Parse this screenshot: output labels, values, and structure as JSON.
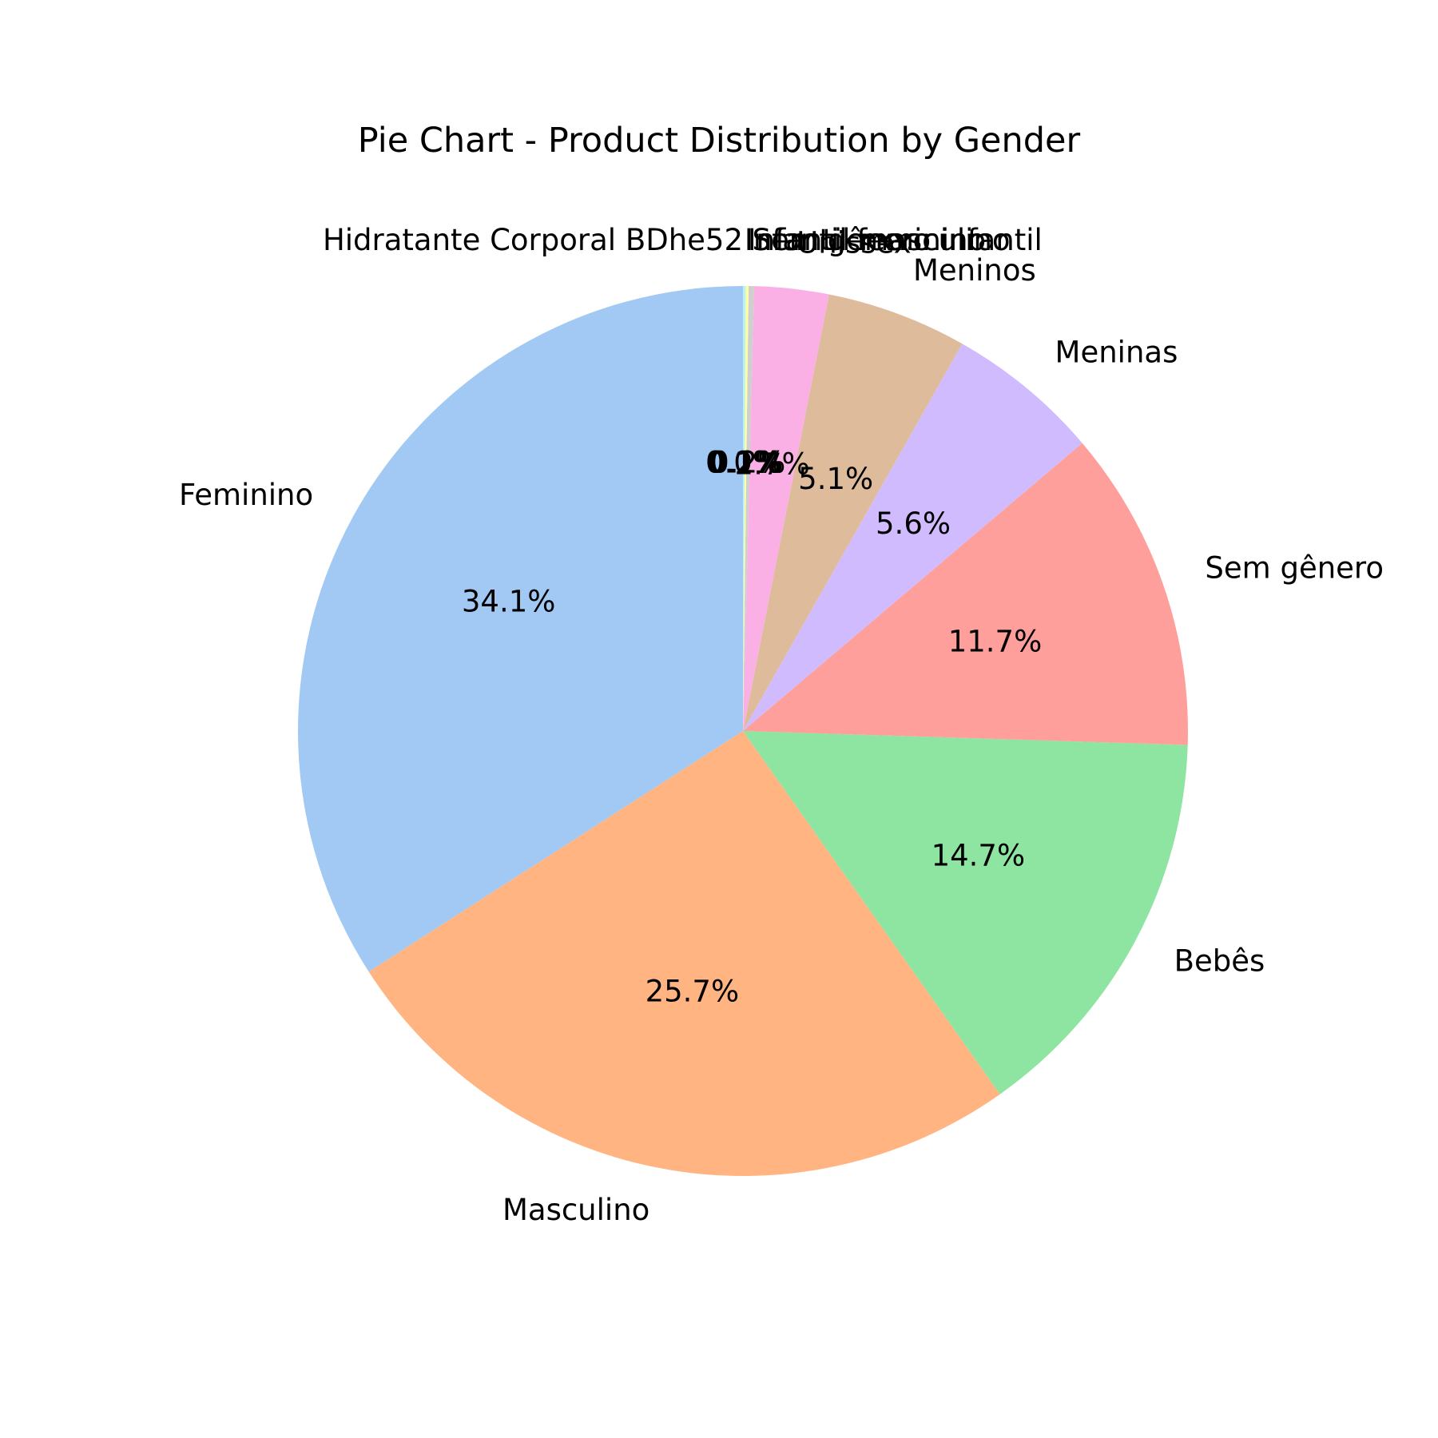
{
  "chart_data": {
    "type": "pie",
    "title": "Pie Chart - Product Distribution by Gender",
    "slices": [
      {
        "label": "Feminino",
        "value": 34.1,
        "pct_label": "34.1%",
        "color": "#a1c9f4"
      },
      {
        "label": "Masculino",
        "value": 25.7,
        "pct_label": "25.7%",
        "color": "#ffb482"
      },
      {
        "label": "Bebês",
        "value": 14.7,
        "pct_label": "14.7%",
        "color": "#8de5a1"
      },
      {
        "label": "Sem gênero",
        "value": 11.7,
        "pct_label": "11.7%",
        "color": "#ff9f9b"
      },
      {
        "label": "Meninas",
        "value": 5.6,
        "pct_label": "5.6%",
        "color": "#d0bbff"
      },
      {
        "label": "Meninos",
        "value": 5.1,
        "pct_label": "5.1%",
        "color": "#debb9b"
      },
      {
        "label": "Unissex",
        "value": 2.7,
        "pct_label": "2.7%",
        "color": "#fab0e4"
      },
      {
        "label": "Sem gênero infantil",
        "value": 0.2,
        "pct_label": "0.2%",
        "color": "#cfcfcf"
      },
      {
        "label": "Infantil masculino",
        "value": 0.1,
        "pct_label": "0.1%",
        "color": "#fffea3"
      },
      {
        "label": "Infantil feminino",
        "value": 0.1,
        "pct_label": "0.1%",
        "color": "#b9f2f0"
      },
      {
        "label": "Hidratante Corporal BDhe52",
        "value": 0.0,
        "pct_label": "0.0%",
        "color": "#a1c9f4"
      }
    ]
  }
}
